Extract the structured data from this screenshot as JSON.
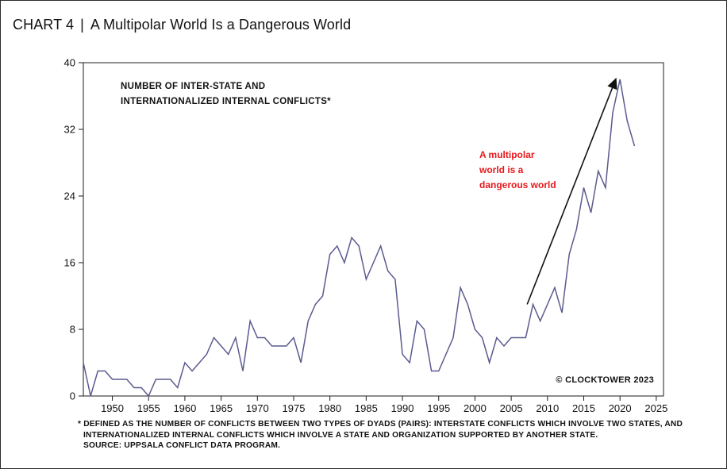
{
  "header": {
    "chart_label": "CHART 4",
    "separator": "|",
    "title": "A Multipolar World Is a Dangerous World"
  },
  "chart_data": {
    "type": "line",
    "title": "NUMBER OF INTER-STATE AND INTERNATIONALIZED INTERNAL CONFLICTS*",
    "title_lines": [
      "NUMBER OF INTER-STATE AND",
      "INTERNATIONALIZED INTERNAL CONFLICTS*"
    ],
    "xlabel": "",
    "ylabel": "",
    "xlim": [
      1946,
      2026
    ],
    "ylim": [
      0,
      40
    ],
    "x_ticks": [
      1950,
      1955,
      1960,
      1965,
      1970,
      1975,
      1980,
      1985,
      1990,
      1995,
      2000,
      2005,
      2010,
      2015,
      2020,
      2025
    ],
    "y_ticks": [
      0,
      8,
      16,
      24,
      32,
      40
    ],
    "grid": false,
    "line_color": "#5b5a8f",
    "series": [
      {
        "x": [
          1946,
          1947,
          1948,
          1949,
          1950,
          1951,
          1952,
          1953,
          1954,
          1955,
          1956,
          1957,
          1958,
          1959,
          1960,
          1961,
          1962,
          1963,
          1964,
          1965,
          1966,
          1967,
          1968,
          1969,
          1970,
          1971,
          1972,
          1973,
          1974,
          1975,
          1976,
          1977,
          1978,
          1979,
          1980,
          1981,
          1982,
          1983,
          1984,
          1985,
          1986,
          1987,
          1988,
          1989,
          1990,
          1991,
          1992,
          1993,
          1994,
          1995,
          1996,
          1997,
          1998,
          1999,
          2000,
          2001,
          2002,
          2003,
          2004,
          2005,
          2006,
          2007,
          2008,
          2009,
          2010,
          2011,
          2012,
          2013,
          2014,
          2015,
          2016,
          2017,
          2018,
          2019,
          2020,
          2021,
          2022
        ],
        "values": [
          4,
          0,
          3,
          3,
          2,
          2,
          2,
          1,
          1,
          0,
          2,
          2,
          2,
          1,
          4,
          3,
          4,
          5,
          7,
          6,
          5,
          7,
          3,
          9,
          7,
          7,
          6,
          6,
          6,
          7,
          4,
          9,
          11,
          12,
          17,
          18,
          16,
          19,
          18,
          14,
          16,
          18,
          15,
          14,
          5,
          4,
          9,
          8,
          3,
          3,
          5,
          7,
          13,
          11,
          8,
          7,
          4,
          7,
          6,
          7,
          7,
          7,
          11,
          9,
          11,
          13,
          10,
          17,
          20,
          25,
          22,
          27,
          25,
          34,
          38,
          33,
          30
        ]
      }
    ],
    "annotations": [
      {
        "text_lines": [
          "A multipolar",
          "world is a",
          "dangerous world"
        ],
        "color": "#e8191c",
        "arrow": {
          "from": [
            2007.2,
            11
          ],
          "to": [
            2019.5,
            38.2
          ]
        }
      },
      {
        "text": "© CLOCKTOWER 2023",
        "position": "bottom-right"
      }
    ]
  },
  "footnote": {
    "lines": [
      "* DEFINED AS THE NUMBER OF CONFLICTS BETWEEN TWO TYPES OF DYADS (PAIRS): INTERSTATE CONFLICTS WHICH INVOLVE TWO STATES, AND",
      "INTERNATIONALIZED INTERNAL CONFLICTS WHICH INVOLVE A STATE AND ORGANIZATION SUPPORTED BY ANOTHER STATE.",
      "SOURCE: UPPSALA CONFLICT DATA PROGRAM."
    ]
  }
}
